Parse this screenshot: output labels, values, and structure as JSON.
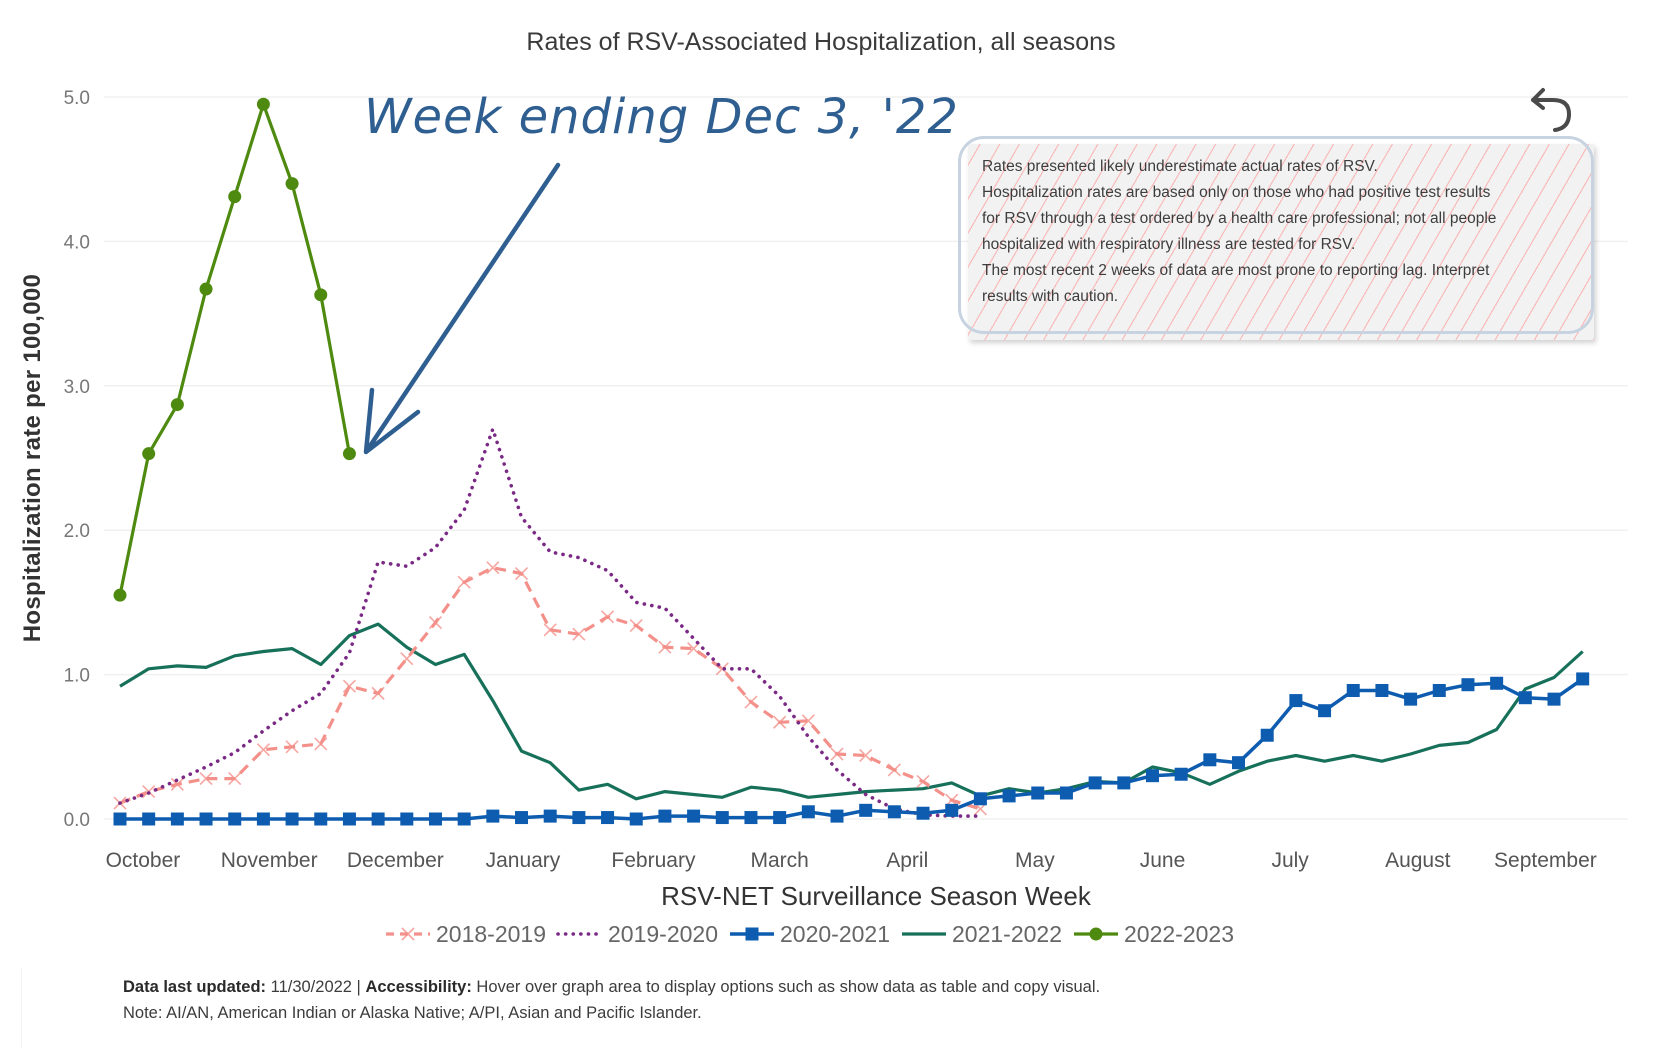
{
  "chart_data": {
    "type": "line",
    "title": "Rates of RSV-Associated Hospitalization, all seasons",
    "xlabel": "RSV-NET Surveillance Season Week",
    "ylabel": "Hospitalization rate per 100,000",
    "ylim": [
      0,
      5
    ],
    "yticks": [
      "0.0",
      "1.0",
      "2.0",
      "3.0",
      "4.0",
      "5.0"
    ],
    "ytick_values": [
      0,
      1,
      2,
      3,
      4,
      5
    ],
    "grid": true,
    "legend_position": "bottom",
    "weeks_count": 52,
    "month_labels": [
      "October",
      "November",
      "December",
      "January",
      "February",
      "March",
      "April",
      "May",
      "June",
      "July",
      "August",
      "September"
    ],
    "month_label_weeks": [
      0.8,
      5.2,
      9.6,
      14.05,
      18.6,
      23.0,
      27.45,
      31.9,
      36.35,
      40.8,
      45.25,
      49.7
    ],
    "series": [
      {
        "name": "2018-2019",
        "color": "#f4908a",
        "style": "dashed",
        "marker": "x",
        "values": [
          0.11,
          0.19,
          0.24,
          0.28,
          0.28,
          0.48,
          0.5,
          0.52,
          0.92,
          0.87,
          1.11,
          1.36,
          1.64,
          1.74,
          1.7,
          1.31,
          1.28,
          1.4,
          1.34,
          1.19,
          1.18,
          1.04,
          0.81,
          0.67,
          0.68,
          0.45,
          0.44,
          0.34,
          0.26,
          0.13,
          0.07
        ]
      },
      {
        "name": "2019-2020",
        "color": "#7a2a85",
        "style": "dotted",
        "marker": "none",
        "values": [
          0.11,
          0.18,
          0.27,
          0.36,
          0.46,
          0.61,
          0.75,
          0.87,
          1.15,
          1.78,
          1.75,
          1.88,
          2.14,
          2.7,
          2.09,
          1.85,
          1.81,
          1.72,
          1.5,
          1.46,
          1.25,
          1.04,
          1.04,
          0.85,
          0.57,
          0.34,
          0.17,
          0.07,
          0.03,
          0.02,
          0.02
        ]
      },
      {
        "name": "2020-2021",
        "color": "#0d5cb0",
        "style": "solid",
        "marker": "square",
        "values": [
          0.0,
          0.0,
          0.0,
          0.0,
          0.0,
          0.0,
          0.0,
          0.0,
          0.0,
          0.0,
          0.0,
          0.0,
          0.0,
          0.02,
          0.01,
          0.02,
          0.01,
          0.01,
          0.0,
          0.02,
          0.02,
          0.01,
          0.01,
          0.01,
          0.05,
          0.02,
          0.06,
          0.05,
          0.04,
          0.06,
          0.14,
          0.16,
          0.18,
          0.18,
          0.25,
          0.25,
          0.3,
          0.31,
          0.41,
          0.39,
          0.58,
          0.82,
          0.75,
          0.89,
          0.89,
          0.83,
          0.89,
          0.93,
          0.94,
          0.84,
          0.83,
          0.97
        ]
      },
      {
        "name": "2021-2022",
        "color": "#17705a",
        "style": "solid",
        "marker": "none",
        "values": [
          0.92,
          1.04,
          1.06,
          1.05,
          1.13,
          1.16,
          1.18,
          1.07,
          1.27,
          1.35,
          1.19,
          1.07,
          1.14,
          0.82,
          0.47,
          0.39,
          0.2,
          0.24,
          0.14,
          0.19,
          0.17,
          0.15,
          0.22,
          0.2,
          0.15,
          0.17,
          0.19,
          0.2,
          0.21,
          0.25,
          0.16,
          0.21,
          0.18,
          0.21,
          0.26,
          0.25,
          0.36,
          0.32,
          0.24,
          0.33,
          0.4,
          0.44,
          0.4,
          0.44,
          0.4,
          0.45,
          0.51,
          0.53,
          0.62,
          0.9,
          0.98,
          1.16
        ]
      },
      {
        "name": "2022-2023",
        "color": "#4f8a10",
        "style": "solid",
        "marker": "circle",
        "values": [
          1.55,
          2.53,
          2.87,
          3.67,
          4.31,
          4.95,
          4.4,
          3.63,
          2.53
        ]
      }
    ],
    "annotations": [
      {
        "text": "Week ending Dec 3, '22",
        "target_series": "2022-2023",
        "target_week_index": 8,
        "color": "#2f5f91"
      }
    ]
  },
  "note_box": {
    "lines": [
      "Rates presented likely underestimate actual rates of RSV.",
      "Hospitalization rates are based only on those who had positive test results",
      "for RSV through a test ordered by a health care professional; not all people",
      "hospitalized with respiratory illness are tested for RSV.",
      "The most recent 2 weeks of data are most prone to reporting lag. Interpret",
      "results with caution."
    ]
  },
  "controls": {
    "undo_icon": "undo-arrow-icon"
  },
  "footer": {
    "updated_label": "Data last updated:",
    "updated_value": " 11/30/2022 | ",
    "accessibility_label": "Accessibility:",
    "accessibility_text": " Hover over graph area to display options such as show data as table and copy visual.",
    "note": "Note: AI/AN, American Indian or Alaska Native; A/PI, Asian and Pacific Islander."
  }
}
